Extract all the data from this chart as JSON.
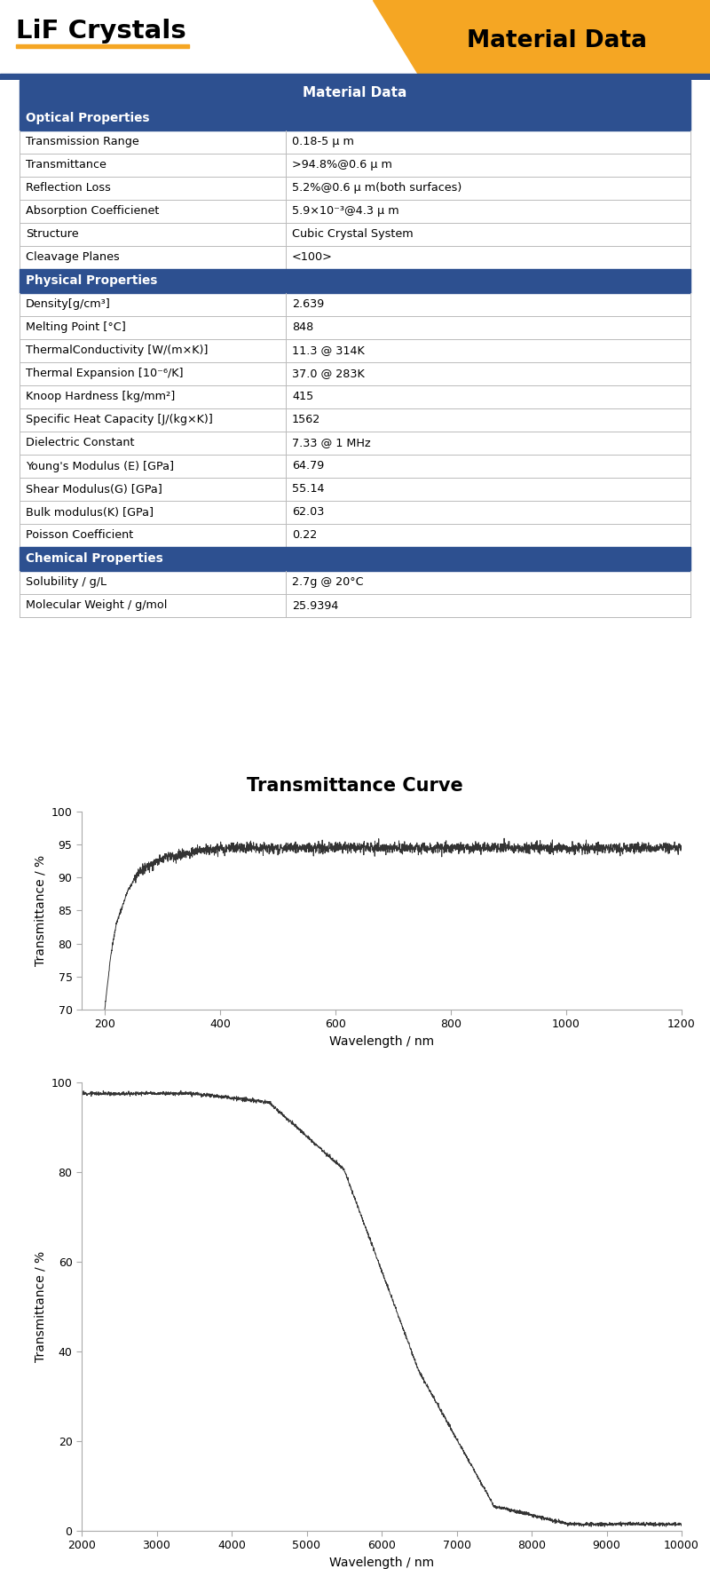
{
  "title": "LiF Crystals",
  "badge_text": "Material Data",
  "table_title": "Material Data",
  "optical_header": "Optical Properties",
  "physical_header": "Physical Properties",
  "chemical_header": "Chemical Properties",
  "optical_rows": [
    [
      "Transmission Range",
      "0.18-5 μ m"
    ],
    [
      "Transmittance",
      ">94.8%@0.6 μ m"
    ],
    [
      "Reflection Loss",
      "5.2%@0.6 μ m(both surfaces)"
    ],
    [
      "Absorption Coefficienet",
      "5.9×10⁻³@4.3 μ m"
    ],
    [
      "Structure",
      "Cubic Crystal System"
    ],
    [
      "Cleavage Planes",
      "<100>"
    ]
  ],
  "physical_rows": [
    [
      "Density[g/cm³]",
      "2.639"
    ],
    [
      "Melting Point [°C]",
      "848"
    ],
    [
      "ThermalConductivity [W/(m×K)]",
      "11.3 @ 314K"
    ],
    [
      "Thermal Expansion [10⁻⁶/K]",
      "37.0 @ 283K"
    ],
    [
      "Knoop Hardness [kg/mm²]",
      "415"
    ],
    [
      "Specific Heat Capacity [J/(kg×K)]",
      "1562"
    ],
    [
      "Dielectric Constant",
      "7.33 @ 1 MHz"
    ],
    [
      "Young's Modulus (E) [GPa]",
      "64.79"
    ],
    [
      "Shear Modulus(G) [GPa]",
      "55.14"
    ],
    [
      "Bulk modulus(K) [GPa]",
      "62.03"
    ],
    [
      "Poisson Coefficient",
      "0.22"
    ]
  ],
  "chemical_rows": [
    [
      "Solubility / g/L",
      "2.7g @ 20°C"
    ],
    [
      "Molecular Weight / g/mol",
      "25.9394"
    ]
  ],
  "curve_title": "Transmittance Curve",
  "curve1_xlabel": "Wavelength / nm",
  "curve1_ylabel": "Transmittance / %",
  "curve2_xlabel": "Wavelength / nm",
  "curve2_ylabel": "Transmittance / %",
  "header_orange": "#f5a623",
  "header_blue": "#2d5090"
}
